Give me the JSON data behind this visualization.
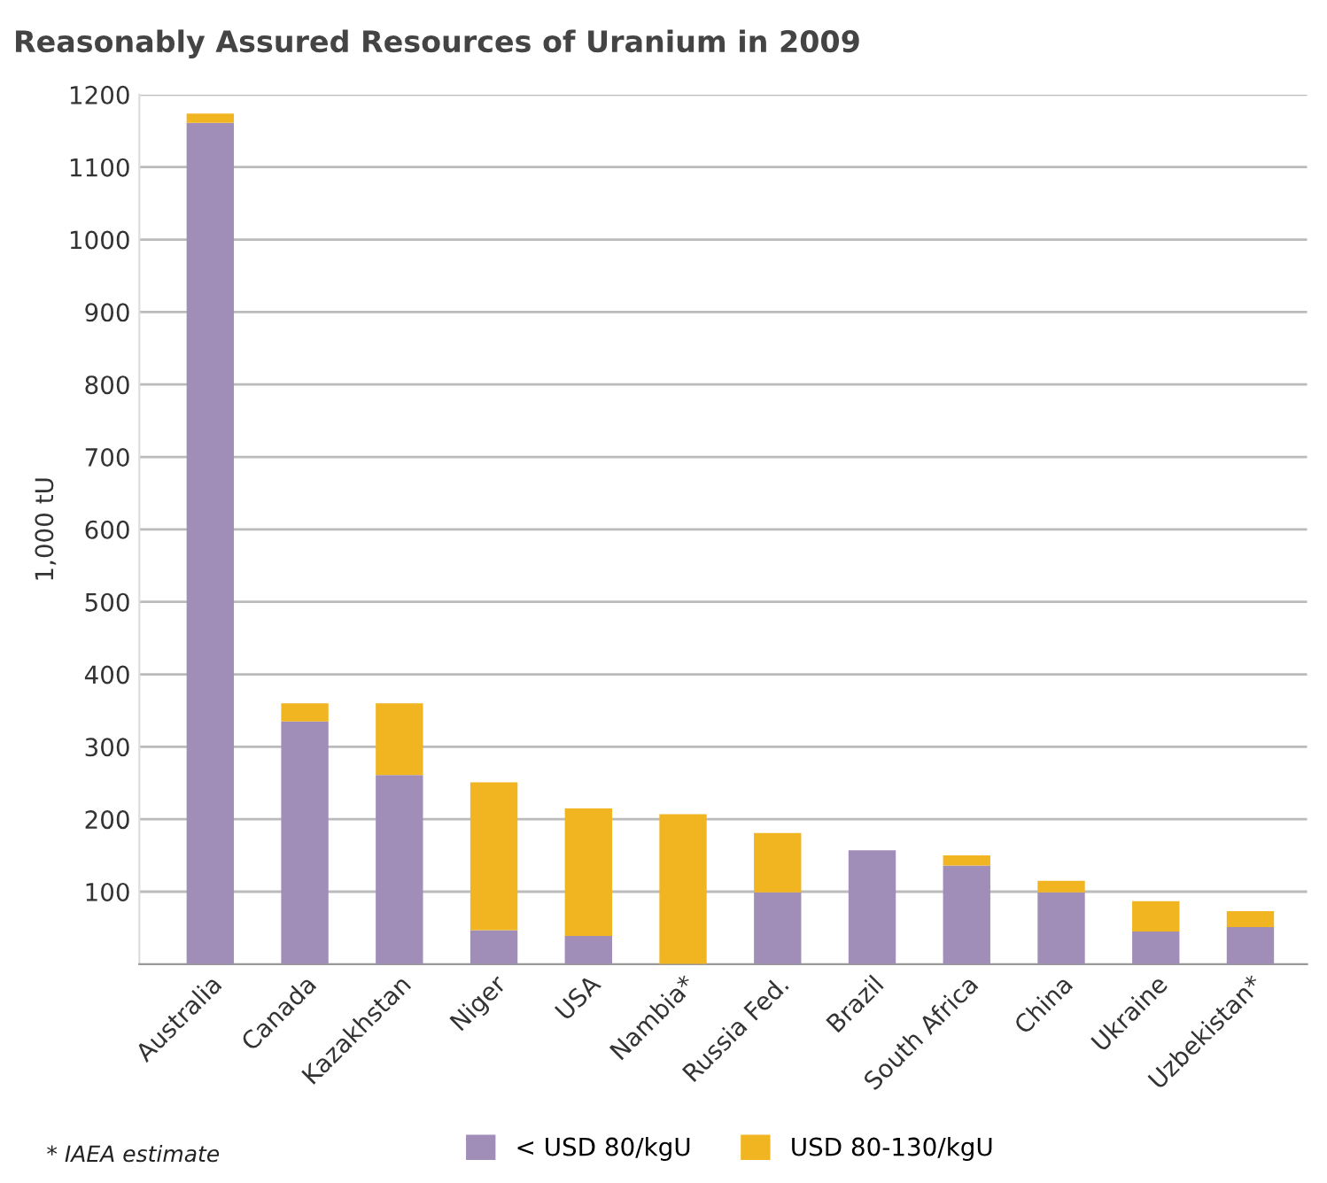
{
  "chart_data": {
    "type": "bar",
    "title": "Reasonably Assured Resources of Uranium in 2009",
    "ylabel": "1,000 tU",
    "categories": [
      "Australia",
      "Canada",
      "Kazakhstan",
      "Niger",
      "USA",
      "Nambia*",
      "Russia Fed.",
      "Brazil",
      "South Africa",
      "China",
      "Ukraine",
      "Uzbekistan*"
    ],
    "series": [
      {
        "name": "< USD 80/kgU",
        "color": "#a08eb8",
        "values": [
          1161,
          335,
          261,
          47,
          39,
          0,
          99,
          157,
          136,
          99,
          45,
          51
        ]
      },
      {
        "name": "USD 80-130/kgU",
        "color": "#f2b522",
        "values": [
          13,
          25,
          99,
          204,
          176,
          207,
          82,
          0,
          14,
          16,
          42,
          22
        ]
      }
    ],
    "stacked": true,
    "ylim": [
      0,
      1200
    ],
    "yticks": [
      100,
      200,
      300,
      400,
      500,
      600,
      700,
      800,
      900,
      1000,
      1100,
      1200
    ],
    "grid": "y",
    "legend": "bottom",
    "annotations": [
      "* IAEA estimate"
    ]
  }
}
